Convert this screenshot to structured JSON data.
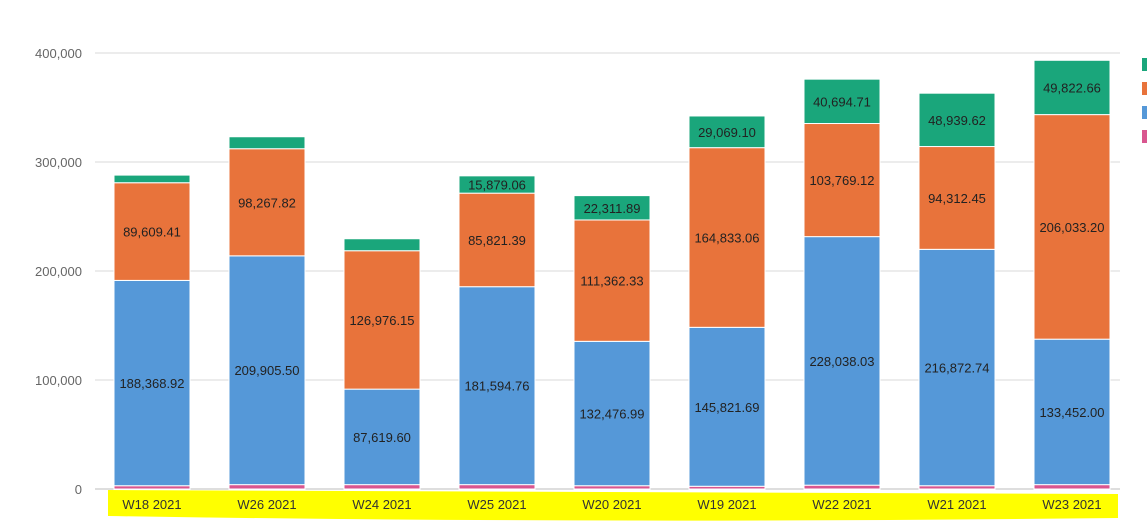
{
  "chart_data": {
    "type": "bar",
    "stacked": true,
    "categories": [
      "W18 2021",
      "W26 2021",
      "W24 2021",
      "W25 2021",
      "W20 2021",
      "W19 2021",
      "W22 2021",
      "W21 2021",
      "W23 2021"
    ],
    "series": [
      {
        "color": "#d9568f",
        "values": [
          3000,
          4000,
          4000,
          4000,
          3000,
          2500,
          3500,
          3000,
          4000
        ],
        "labels": [
          "",
          "",
          "",
          "",
          "",
          "",
          "",
          "",
          ""
        ]
      },
      {
        "color": "#5598d8",
        "values": [
          188368.92,
          209905.5,
          87619.6,
          181594.76,
          132476.99,
          145821.69,
          228038.03,
          216872.74,
          133452.0
        ],
        "labels": [
          "188,368.92",
          "209,905.50",
          "87,619.60",
          "181,594.76",
          "132,476.99",
          "145,821.69",
          "228,038.03",
          "216,872.74",
          "133,452.00"
        ]
      },
      {
        "color": "#e8733b",
        "values": [
          89609.41,
          98267.82,
          126976.15,
          85821.39,
          111362.33,
          164833.06,
          103769.12,
          94312.45,
          206033.2
        ],
        "labels": [
          "89,609.41",
          "98,267.82",
          "126,976.15",
          "85,821.39",
          "111,362.33",
          "164,833.06",
          "103,769.12",
          "94,312.45",
          "206,033.20"
        ]
      },
      {
        "color": "#1aa67b",
        "values": [
          7000,
          11000,
          11000,
          15879.06,
          22311.89,
          29069.1,
          40694.71,
          48939.62,
          49822.66
        ],
        "labels": [
          "",
          "",
          "",
          "15,879.06",
          "22,311.89",
          "29,069.10",
          "40,694.71",
          "48,939.62",
          "49,822.66"
        ]
      }
    ],
    "yticks": [
      0,
      100000,
      200000,
      300000,
      400000
    ],
    "ytick_labels": [
      "0",
      "100,000",
      "200,000",
      "300,000",
      "400,000"
    ],
    "ylim": [
      0,
      400000
    ],
    "grid": true,
    "legend": "right (partially visible)",
    "legend_colors": [
      "#1aa67b",
      "#e8733b",
      "#5598d8",
      "#d9568f"
    ],
    "highlight_color": "#ffff00"
  }
}
